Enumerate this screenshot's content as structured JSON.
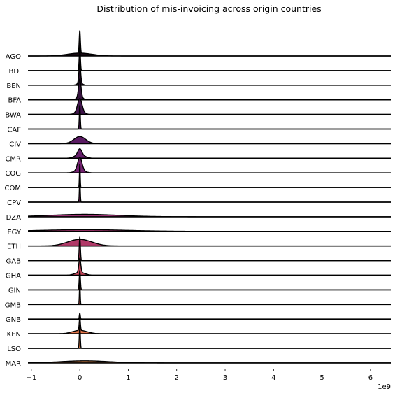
{
  "chart_data": {
    "type": "ridgeline",
    "title": "Distribution of mis-invoicing across origin countries",
    "xlabel": "",
    "ylabel": "",
    "x_scale_label": "1e9",
    "x_unit_multiplier": 1000000000,
    "xlim": [
      -1.07,
      6.42
    ],
    "x_ticks": [
      -1,
      0,
      1,
      2,
      3,
      4,
      5,
      6
    ],
    "grid": false,
    "legend": "none",
    "series": [
      {
        "name": "AGO",
        "color": "#1a0a14",
        "peak": 0.0,
        "spike": 0.95,
        "spike_width": 0.012,
        "bump": 0.12,
        "bump_width": 0.25
      },
      {
        "name": "BDI",
        "color": "#1f0c1c",
        "peak": 0.0,
        "spike": 1.0,
        "spike_width": 0.012,
        "bump": 0.0,
        "bump_width": 0.2
      },
      {
        "name": "BEN",
        "color": "#2a0f2e",
        "peak": 0.0,
        "spike": 0.8,
        "spike_width": 0.018,
        "bump": 0.1,
        "bump_width": 0.05
      },
      {
        "name": "BFA",
        "color": "#35123d",
        "peak": 0.0,
        "spike": 0.75,
        "spike_width": 0.025,
        "bump": 0.12,
        "bump_width": 0.06
      },
      {
        "name": "BWA",
        "color": "#41154c",
        "peak": 0.0,
        "spike": 0.55,
        "spike_width": 0.045,
        "bump": 0.12,
        "bump_width": 0.08
      },
      {
        "name": "CAF",
        "color": "#4d1858",
        "peak": 0.0,
        "spike": 1.0,
        "spike_width": 0.01,
        "bump": 0.0,
        "bump_width": 0.1
      },
      {
        "name": "CIV",
        "color": "#5a1b63",
        "peak": 0.0,
        "spike": 0.0,
        "spike_width": 0.02,
        "bump": 0.3,
        "bump_width": 0.12
      },
      {
        "name": "CMR",
        "color": "#661f6b",
        "peak": 0.0,
        "spike": 0.25,
        "spike_width": 0.04,
        "bump": 0.15,
        "bump_width": 0.1
      },
      {
        "name": "COG",
        "color": "#732270",
        "peak": 0.0,
        "spike": 0.55,
        "spike_width": 0.045,
        "bump": 0.1,
        "bump_width": 0.1
      },
      {
        "name": "COM",
        "color": "#802673",
        "peak": 0.0,
        "spike": 1.0,
        "spike_width": 0.008,
        "bump": 0.0,
        "bump_width": 0.1
      },
      {
        "name": "CPV",
        "color": "#8c2a73",
        "peak": 0.0,
        "spike": 1.0,
        "spike_width": 0.009,
        "bump": 0.0,
        "bump_width": 0.1
      },
      {
        "name": "DZA",
        "color": "#992e71",
        "peak": 0.1,
        "spike": 0.0,
        "spike_width": 0.05,
        "bump": 0.1,
        "bump_width": 0.7
      },
      {
        "name": "EGY",
        "color": "#a5336d",
        "peak": 0.1,
        "spike": 0.0,
        "spike_width": 0.05,
        "bump": 0.07,
        "bump_width": 0.9
      },
      {
        "name": "ETH",
        "color": "#b13968",
        "peak": 0.0,
        "spike": 0.0,
        "spike_width": 0.05,
        "bump": 0.28,
        "bump_width": 0.25
      },
      {
        "name": "GAB",
        "color": "#bc4062",
        "peak": 0.0,
        "spike": 1.0,
        "spike_width": 0.012,
        "bump": 0.0,
        "bump_width": 0.1
      },
      {
        "name": "GHA",
        "color": "#c7485c",
        "peak": 0.0,
        "spike": 0.6,
        "spike_width": 0.02,
        "bump": 0.12,
        "bump_width": 0.1
      },
      {
        "name": "GIN",
        "color": "#d05256",
        "peak": 0.0,
        "spike": 0.8,
        "spike_width": 0.012,
        "bump": 0.0,
        "bump_width": 0.1
      },
      {
        "name": "GMB",
        "color": "#d85d51",
        "peak": 0.0,
        "spike": 1.0,
        "spike_width": 0.008,
        "bump": 0.0,
        "bump_width": 0.1
      },
      {
        "name": "GNB",
        "color": "#df684d",
        "peak": 0.0,
        "spike": 0.25,
        "spike_width": 0.01,
        "bump": 0.0,
        "bump_width": 0.1
      },
      {
        "name": "KEN",
        "color": "#e5754a",
        "peak": 0.0,
        "spike": 0.55,
        "spike_width": 0.012,
        "bump": 0.14,
        "bump_width": 0.15
      },
      {
        "name": "LSO",
        "color": "#ea8249",
        "peak": 0.0,
        "spike": 1.0,
        "spike_width": 0.01,
        "bump": 0.0,
        "bump_width": 0.1
      },
      {
        "name": "MAR",
        "color": "#ee904b",
        "peak": 0.1,
        "spike": 0.0,
        "spike_width": 0.05,
        "bump": 0.09,
        "bump_width": 0.5
      }
    ]
  }
}
